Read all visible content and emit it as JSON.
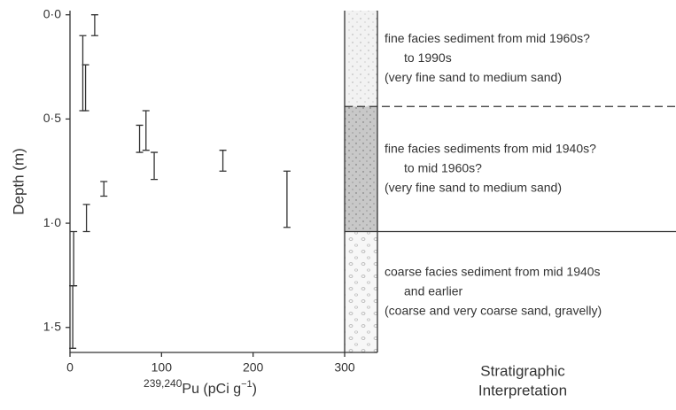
{
  "chart_data": {
    "type": "range",
    "y_label": "Depth (m)",
    "x_label": [
      "239,240",
      "Pu (pCi g",
      "−1",
      ")"
    ],
    "xlim": [
      0,
      300
    ],
    "xticks": [
      0,
      100,
      200,
      300
    ],
    "ylim": [
      -0.02,
      1.62
    ],
    "yticks": [
      {
        "value": 0,
        "label": "0·0"
      },
      {
        "value": 0.5,
        "label": "0·5"
      },
      {
        "value": 1.0,
        "label": "1·0"
      },
      {
        "value": 1.5,
        "label": "1·5"
      }
    ],
    "color": "#333333",
    "series": [
      {
        "x": [
          27,
          14,
          17,
          18,
          37,
          76,
          83,
          92,
          167,
          237,
          4,
          3
        ],
        "low": [
          0,
          0.1,
          0.24,
          0.91,
          0.8,
          0.53,
          0.46,
          0.66,
          0.65,
          0.75,
          1.04,
          1.3
        ],
        "high": [
          0.1,
          0.46,
          0.46,
          1.04,
          0.87,
          0.66,
          0.65,
          0.79,
          0.75,
          1.02,
          1.3,
          1.6
        ]
      }
    ],
    "column_title": [
      "Stratigraphic",
      "Interpretation"
    ],
    "boundaries": [
      {
        "depth": 0.44,
        "style": "dashed"
      },
      {
        "depth": 1.04,
        "style": "solid"
      }
    ],
    "units": [
      {
        "lines": [
          "fine facies sediment from mid 1960s?",
          "to 1990s",
          "(very fine sand to medium sand)"
        ]
      },
      {
        "lines": [
          "fine facies sediments from mid 1940s?",
          "to mid 1960s?",
          "(very fine sand to medium sand)"
        ]
      },
      {
        "lines": [
          "coarse facies sediment from mid 1940s",
          "and earlier",
          "(coarse and very coarse sand, gravelly)"
        ]
      }
    ]
  }
}
